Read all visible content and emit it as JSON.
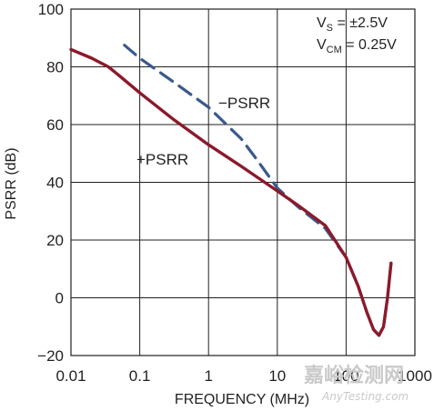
{
  "chart_data": {
    "type": "line",
    "xlabel": "FREQUENCY (MHz)",
    "ylabel": "PSRR (dB)",
    "xscale": "log",
    "xlim": [
      0.01,
      1000
    ],
    "ylim": [
      -20,
      100
    ],
    "x_ticks": [
      "0.01",
      "0.1",
      "1",
      "10",
      "100",
      "1000"
    ],
    "y_ticks": [
      "100",
      "80",
      "60",
      "40",
      "20",
      "0",
      "−20"
    ],
    "grid": true,
    "conditions": {
      "vs_label": "V",
      "vs_sub": "S",
      "vs_value": " = ±2.5V",
      "vcm_label": "V",
      "vcm_sub": "CM",
      "vcm_value": " = 0.25V"
    },
    "series": [
      {
        "name": "+PSRR",
        "color": "#8b1a2b",
        "style": "solid",
        "points": [
          [
            0.01,
            86
          ],
          [
            0.02,
            83
          ],
          [
            0.035,
            80
          ],
          [
            0.05,
            77
          ],
          [
            0.1,
            71
          ],
          [
            0.3,
            62
          ],
          [
            1,
            53
          ],
          [
            3,
            45.5
          ],
          [
            10,
            37
          ],
          [
            20,
            32
          ],
          [
            50,
            25
          ],
          [
            100,
            14
          ],
          [
            150,
            4
          ],
          [
            200,
            -5
          ],
          [
            250,
            -11
          ],
          [
            300,
            -13
          ],
          [
            350,
            -10
          ],
          [
            400,
            0
          ],
          [
            450,
            12
          ]
        ]
      },
      {
        "name": "−PSRR",
        "color": "#3b5a8a",
        "style": "dashed",
        "points": [
          [
            0.06,
            87.5
          ],
          [
            0.1,
            83
          ],
          [
            0.3,
            75
          ],
          [
            1,
            66
          ],
          [
            3,
            55
          ],
          [
            5,
            48
          ],
          [
            10,
            38
          ],
          [
            20,
            31.5
          ],
          [
            50,
            24
          ],
          [
            100,
            14
          ],
          [
            150,
            4
          ],
          [
            200,
            -5
          ],
          [
            250,
            -11
          ],
          [
            300,
            -13
          ],
          [
            350,
            -10
          ],
          [
            400,
            0
          ],
          [
            450,
            12
          ]
        ]
      }
    ]
  },
  "watermark": {
    "text": "嘉峪检测网",
    "url": "AnyTesting.com"
  }
}
